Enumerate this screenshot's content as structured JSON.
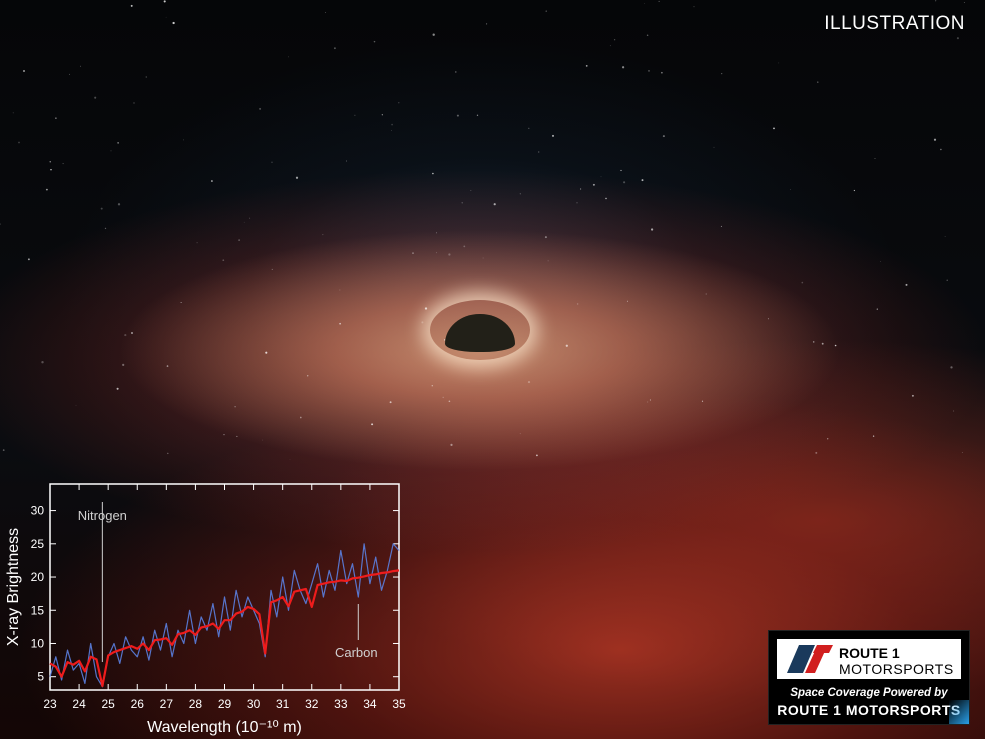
{
  "header": {
    "illustration_label": "ILLUSTRATION"
  },
  "branding": {
    "logo_line_route": "ROUTE 1",
    "logo_line_motorsports": "MOTORSPORTS",
    "tagline": "Space Coverage Powered by",
    "brand": "ROUTE 1 MOTORSPORTS",
    "colors": {
      "mark_dark": "#1a3a5c",
      "mark_red": "#d11f1f",
      "accent": "#2aa0e8"
    }
  },
  "chart_data": {
    "type": "line",
    "title": "",
    "xlabel": "Wavelength (10⁻¹⁰ m)",
    "ylabel": "X-ray Brightness",
    "xlim": [
      23,
      35
    ],
    "ylim": [
      3,
      34
    ],
    "x_ticks": [
      "23",
      "24",
      "25",
      "26",
      "27",
      "28",
      "29",
      "30",
      "31",
      "32",
      "33",
      "34",
      "35"
    ],
    "y_ticks": [
      "5",
      "10",
      "15",
      "20",
      "25",
      "30"
    ],
    "annotations": [
      {
        "label": "Nitrogen",
        "x": 24.8
      },
      {
        "label": "Carbon",
        "x": 33.6
      }
    ],
    "series": [
      {
        "color": "#5b7fe0",
        "style": "data",
        "x": [
          23.0,
          23.2,
          23.4,
          23.6,
          23.8,
          24.0,
          24.2,
          24.4,
          24.6,
          24.8,
          25.0,
          25.2,
          25.4,
          25.6,
          25.8,
          26.0,
          26.2,
          26.4,
          26.6,
          26.8,
          27.0,
          27.2,
          27.4,
          27.6,
          27.8,
          28.0,
          28.2,
          28.4,
          28.6,
          28.8,
          29.0,
          29.2,
          29.4,
          29.6,
          29.8,
          30.0,
          30.2,
          30.4,
          30.6,
          30.8,
          31.0,
          31.2,
          31.4,
          31.6,
          31.8,
          32.0,
          32.2,
          32.4,
          32.6,
          32.8,
          33.0,
          33.2,
          33.4,
          33.6,
          33.8,
          34.0,
          34.2,
          34.4,
          34.6,
          34.8,
          35.0
        ],
        "y": [
          5,
          8,
          4.5,
          9,
          6,
          7,
          4,
          10,
          5,
          3.5,
          8,
          10,
          7,
          11,
          9,
          8,
          11,
          7.5,
          12,
          9,
          13,
          8,
          12,
          10,
          15,
          10,
          14,
          12,
          16,
          11,
          17,
          12,
          18,
          14,
          17,
          15,
          13,
          8,
          18,
          14,
          20,
          15,
          21,
          18,
          16,
          19,
          22,
          17,
          21,
          18,
          24,
          19,
          22,
          17,
          25,
          19,
          23,
          18,
          21,
          25,
          24
        ]
      },
      {
        "color": "#ee1c1c",
        "style": "model",
        "x": [
          23.0,
          23.2,
          23.4,
          23.6,
          23.8,
          24.0,
          24.2,
          24.4,
          24.6,
          24.8,
          25.0,
          25.2,
          25.4,
          25.6,
          25.8,
          26.0,
          26.2,
          26.4,
          26.6,
          26.8,
          27.0,
          27.2,
          27.4,
          27.6,
          27.8,
          28.0,
          28.2,
          28.4,
          28.6,
          28.8,
          29.0,
          29.2,
          29.4,
          29.6,
          29.8,
          30.0,
          30.2,
          30.4,
          30.6,
          30.8,
          31.0,
          31.2,
          31.4,
          31.6,
          31.8,
          32.0,
          32.2,
          32.4,
          32.6,
          32.8,
          33.0,
          33.2,
          33.4,
          33.6,
          33.8,
          34.0,
          34.2,
          34.4,
          34.6,
          34.8,
          35.0
        ],
        "y": [
          7,
          6.5,
          5,
          7.2,
          6.8,
          7.4,
          5.8,
          8,
          7.6,
          3.6,
          8.2,
          8.7,
          9,
          9.3,
          9.6,
          9.2,
          10,
          9,
          10.5,
          10.6,
          10.8,
          9.8,
          11.4,
          11.6,
          12,
          11.3,
          12.4,
          12.6,
          13,
          12.2,
          13.5,
          13.5,
          14.5,
          14.8,
          15.5,
          15.2,
          14.4,
          8.5,
          16.2,
          16.5,
          17,
          15.6,
          17.8,
          18,
          18.2,
          15.5,
          18.8,
          19,
          19.2,
          19.3,
          19.5,
          19.4,
          19.8,
          19.9,
          20.1,
          20.3,
          20.4,
          20.6,
          20.7,
          20.9,
          21
        ]
      }
    ]
  }
}
